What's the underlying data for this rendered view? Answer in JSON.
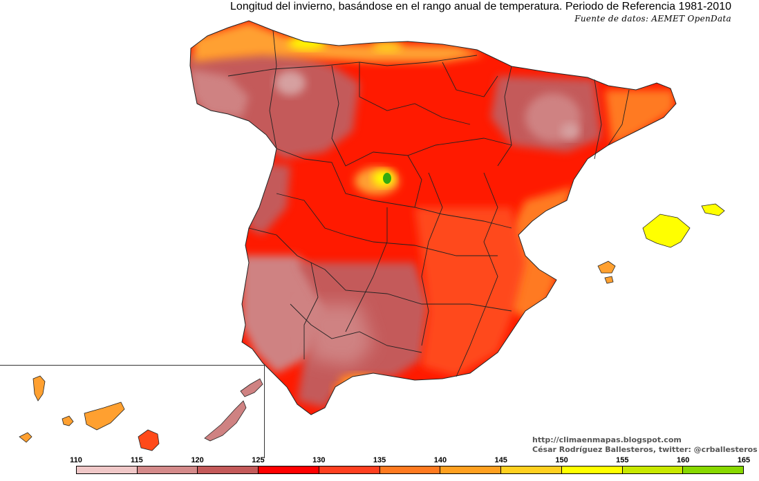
{
  "title": "Longitud del invierno, basándose en el rango anual de temperatura. Periodo de Referencia 1981-2010",
  "source": "Fuente de datos: AEMET OpenData",
  "credit": {
    "blog": "http://climaenmapas.blogspot.com",
    "author": "César Rodríguez Ballesteros, twitter: @crballesteros"
  },
  "legend": {
    "ticks": [
      "110",
      "115",
      "120",
      "125",
      "130",
      "135",
      "140",
      "145",
      "150",
      "155",
      "160",
      "165"
    ],
    "colors": [
      "#f0c8c8",
      "#d48a8a",
      "#c45a5a",
      "#ff0000",
      "#ff4020",
      "#ff7a20",
      "#ffa020",
      "#ffd020",
      "#ffff00",
      "#c8e800",
      "#88d800",
      "#33aa11"
    ]
  },
  "map": {
    "region_colors": {
      "pale": "#d6a0a0",
      "pink": "#cf8282",
      "rose": "#c45a5a",
      "red": "#ff1a00",
      "redorange": "#ff4a1a",
      "orange": "#ff7a22",
      "lightorange": "#ffa030",
      "yellow": "#ffff00",
      "green": "#33aa11",
      "border": "#222222"
    }
  }
}
